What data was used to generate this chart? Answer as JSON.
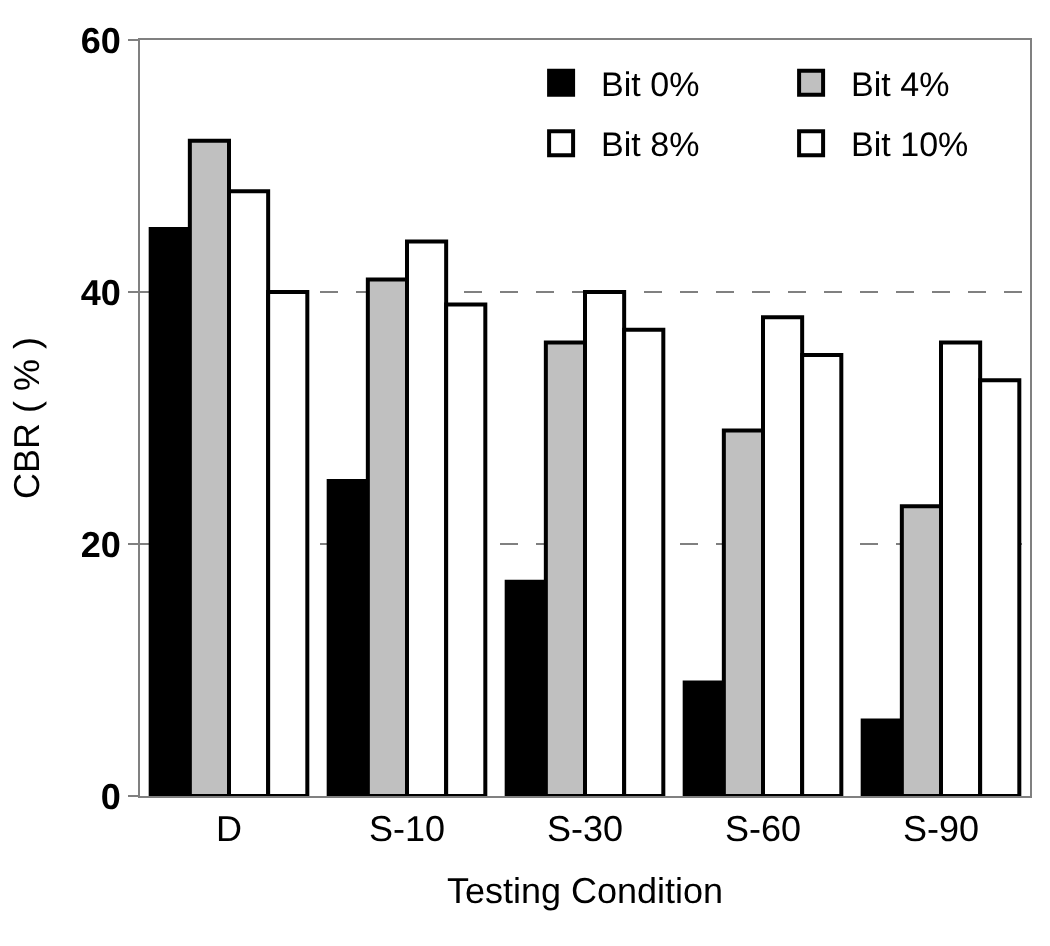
{
  "chart_data": {
    "type": "bar",
    "xlabel": "Testing Condition",
    "ylabel": "CBR ( % )",
    "categories": [
      "D",
      "S-10",
      "S-30",
      "S-60",
      "S-90"
    ],
    "series": [
      {
        "name": "Bit 0%",
        "color": "#000000",
        "values": [
          45,
          25,
          17,
          9,
          6
        ]
      },
      {
        "name": "Bit 4%",
        "color": "#c0c0c0",
        "values": [
          52,
          41,
          36,
          29,
          23
        ]
      },
      {
        "name": "Bit 8%",
        "color": "#ffffff",
        "values": [
          48,
          44,
          40,
          38,
          36
        ]
      },
      {
        "name": "Bit 10%",
        "color": "#ffffff",
        "values": [
          40,
          39,
          37,
          35,
          33
        ]
      }
    ],
    "ylim": [
      0,
      60
    ],
    "yticks": [
      0,
      20,
      40,
      60
    ],
    "grid": "y",
    "legend": "top right"
  }
}
